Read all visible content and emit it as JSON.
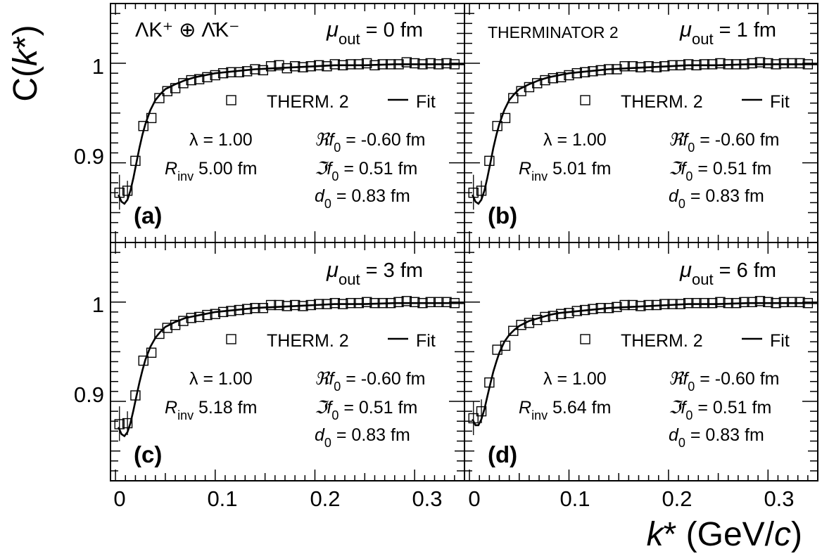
{
  "chart_data": {
    "type": "scatter",
    "xlabel": "k* (GeV/c)",
    "ylabel": "C(k*)",
    "x_ticks": [
      "0",
      "0.1",
      "0.2",
      "0.3"
    ],
    "y_ticks": [
      "0.9",
      "1"
    ],
    "xlim": [
      -0.005,
      0.35
    ],
    "ylim": [
      0.82,
      1.06
    ],
    "system_label": "ΛK⁺ ⊕ Λ̄K⁻",
    "generator_label": "THERMINATOR 2",
    "legend": {
      "data": "THERM. 2",
      "fit": "Fit"
    },
    "param_names": {
      "lambda": "λ =",
      "rinv": "R",
      "rinv_sub": "inv",
      "ref0": "ℜf",
      "imf0": "ℑf",
      "d0": "d",
      "zero_sub": "0"
    },
    "mu_name": "μ",
    "mu_sub": "out",
    "panels": [
      {
        "letter": "(a)",
        "mu_out": "= 0 fm",
        "lambda": "1.00",
        "rinv": "5.00 fm",
        "ref0": "= -0.60 fm",
        "imf0": "= 0.51 fm",
        "d0": "= 0.83 fm",
        "series": {
          "data_x": [
            0.004,
            0.012,
            0.02,
            0.028,
            0.036,
            0.044,
            0.052,
            0.06,
            0.068,
            0.076,
            0.084,
            0.092,
            0.1,
            0.108,
            0.116,
            0.124,
            0.132,
            0.14,
            0.148,
            0.156,
            0.164,
            0.172,
            0.18,
            0.188,
            0.196,
            0.204,
            0.212,
            0.22,
            0.228,
            0.236,
            0.244,
            0.252,
            0.26,
            0.268,
            0.276,
            0.284,
            0.292,
            0.3,
            0.308,
            0.316,
            0.324,
            0.332,
            0.34
          ],
          "data_y": [
            0.87,
            0.872,
            0.902,
            0.937,
            0.945,
            0.965,
            0.972,
            0.975,
            0.98,
            0.983,
            0.984,
            0.986,
            0.988,
            0.99,
            0.991,
            0.991,
            0.992,
            0.994,
            0.993,
            0.997,
            0.998,
            0.995,
            0.997,
            0.996,
            0.997,
            0.998,
            0.997,
            0.999,
            0.998,
            0.999,
            0.999,
            1.0,
            0.998,
            0.999,
            0.999,
            0.999,
            1.001,
            1.0,
            0.999,
            1.0,
            0.999,
            1.0,
            0.999
          ],
          "err_x": [
            0.004,
            0.012
          ],
          "err_lo": [
            0.853,
            0.862
          ],
          "err_hi": [
            0.888,
            0.882
          ],
          "fit_x": [
            0.003,
            0.006,
            0.009,
            0.012,
            0.015,
            0.018,
            0.021,
            0.024,
            0.027,
            0.03,
            0.035,
            0.04,
            0.045,
            0.05,
            0.06,
            0.07,
            0.08,
            0.09,
            0.1,
            0.12,
            0.14,
            0.16,
            0.18,
            0.2,
            0.22,
            0.25,
            0.28,
            0.31,
            0.34,
            0.35
          ],
          "fit_y": [
            0.868,
            0.861,
            0.859,
            0.863,
            0.872,
            0.885,
            0.9,
            0.915,
            0.928,
            0.939,
            0.953,
            0.963,
            0.969,
            0.974,
            0.979,
            0.983,
            0.986,
            0.988,
            0.99,
            0.992,
            0.994,
            0.995,
            0.996,
            0.997,
            0.998,
            0.998,
            0.999,
            0.999,
            0.999,
            0.999
          ]
        }
      },
      {
        "letter": "(b)",
        "mu_out": "= 1 fm",
        "lambda": "1.00",
        "rinv": "5.01 fm",
        "ref0": "= -0.60 fm",
        "imf0": "= 0.51 fm",
        "d0": "= 0.83 fm",
        "series": {
          "data_x": [
            0.004,
            0.012,
            0.02,
            0.028,
            0.036,
            0.044,
            0.052,
            0.06,
            0.068,
            0.076,
            0.084,
            0.092,
            0.1,
            0.108,
            0.116,
            0.124,
            0.132,
            0.14,
            0.148,
            0.156,
            0.164,
            0.172,
            0.18,
            0.188,
            0.196,
            0.204,
            0.212,
            0.22,
            0.228,
            0.236,
            0.244,
            0.252,
            0.26,
            0.268,
            0.276,
            0.284,
            0.292,
            0.3,
            0.308,
            0.316,
            0.324,
            0.332,
            0.34
          ],
          "data_y": [
            0.87,
            0.872,
            0.902,
            0.937,
            0.945,
            0.965,
            0.972,
            0.976,
            0.98,
            0.983,
            0.985,
            0.986,
            0.988,
            0.99,
            0.991,
            0.992,
            0.993,
            0.994,
            0.994,
            0.997,
            0.997,
            0.996,
            0.997,
            0.996,
            0.997,
            0.998,
            0.998,
            0.999,
            0.998,
            0.999,
            0.999,
            1.0,
            0.999,
            0.999,
            0.999,
            1.0,
            1.001,
            1.0,
            0.999,
            1.0,
            1.0,
            1.0,
            0.999
          ],
          "err_x": [
            0.004,
            0.012
          ],
          "err_lo": [
            0.853,
            0.862
          ],
          "err_hi": [
            0.888,
            0.882
          ],
          "fit_x": [
            0.003,
            0.006,
            0.009,
            0.012,
            0.015,
            0.018,
            0.021,
            0.024,
            0.027,
            0.03,
            0.035,
            0.04,
            0.045,
            0.05,
            0.06,
            0.07,
            0.08,
            0.09,
            0.1,
            0.12,
            0.14,
            0.16,
            0.18,
            0.2,
            0.22,
            0.25,
            0.28,
            0.31,
            0.34,
            0.35
          ],
          "fit_y": [
            0.868,
            0.861,
            0.859,
            0.863,
            0.872,
            0.885,
            0.9,
            0.915,
            0.928,
            0.939,
            0.953,
            0.963,
            0.969,
            0.974,
            0.979,
            0.983,
            0.986,
            0.988,
            0.99,
            0.992,
            0.994,
            0.995,
            0.996,
            0.997,
            0.998,
            0.998,
            0.999,
            0.999,
            0.999,
            0.999
          ]
        }
      },
      {
        "letter": "(c)",
        "mu_out": "= 3 fm",
        "lambda": "1.00",
        "rinv": "5.18 fm",
        "ref0": "= -0.60 fm",
        "imf0": "= 0.51 fm",
        "d0": "= 0.83 fm",
        "series": {
          "data_x": [
            0.004,
            0.012,
            0.02,
            0.028,
            0.036,
            0.044,
            0.052,
            0.06,
            0.068,
            0.076,
            0.084,
            0.092,
            0.1,
            0.108,
            0.116,
            0.124,
            0.132,
            0.14,
            0.148,
            0.156,
            0.164,
            0.172,
            0.18,
            0.188,
            0.196,
            0.204,
            0.212,
            0.22,
            0.228,
            0.236,
            0.244,
            0.252,
            0.26,
            0.268,
            0.276,
            0.284,
            0.292,
            0.3,
            0.308,
            0.316,
            0.324,
            0.332,
            0.34
          ],
          "data_y": [
            0.877,
            0.878,
            0.906,
            0.941,
            0.949,
            0.968,
            0.974,
            0.977,
            0.981,
            0.984,
            0.985,
            0.987,
            0.988,
            0.99,
            0.991,
            0.992,
            0.993,
            0.994,
            0.994,
            0.997,
            0.997,
            0.996,
            0.997,
            0.996,
            0.997,
            0.998,
            0.998,
            0.999,
            0.998,
            0.999,
            0.999,
            1.0,
            0.999,
            0.999,
            0.999,
            1.0,
            1.001,
            1.0,
            0.999,
            1.0,
            1.0,
            1.0,
            0.999
          ],
          "err_x": [
            0.004,
            0.012
          ],
          "err_lo": [
            0.86,
            0.866
          ],
          "err_hi": [
            0.895,
            0.89
          ],
          "fit_x": [
            0.003,
            0.006,
            0.009,
            0.012,
            0.015,
            0.018,
            0.021,
            0.024,
            0.027,
            0.03,
            0.035,
            0.04,
            0.045,
            0.05,
            0.06,
            0.07,
            0.08,
            0.09,
            0.1,
            0.12,
            0.14,
            0.16,
            0.18,
            0.2,
            0.22,
            0.25,
            0.28,
            0.31,
            0.34,
            0.35
          ],
          "fit_y": [
            0.874,
            0.867,
            0.865,
            0.869,
            0.878,
            0.891,
            0.905,
            0.919,
            0.931,
            0.942,
            0.955,
            0.964,
            0.97,
            0.975,
            0.98,
            0.984,
            0.986,
            0.988,
            0.99,
            0.992,
            0.994,
            0.995,
            0.996,
            0.997,
            0.998,
            0.998,
            0.999,
            0.999,
            0.999,
            0.999
          ]
        }
      },
      {
        "letter": "(d)",
        "mu_out": "= 6 fm",
        "lambda": "1.00",
        "rinv": "5.64 fm",
        "ref0": "= -0.60 fm",
        "imf0": "= 0.51 fm",
        "d0": "= 0.83 fm",
        "series": {
          "data_x": [
            0.004,
            0.012,
            0.02,
            0.028,
            0.036,
            0.044,
            0.052,
            0.06,
            0.068,
            0.076,
            0.084,
            0.092,
            0.1,
            0.108,
            0.116,
            0.124,
            0.132,
            0.14,
            0.148,
            0.156,
            0.164,
            0.172,
            0.18,
            0.188,
            0.196,
            0.204,
            0.212,
            0.22,
            0.228,
            0.236,
            0.244,
            0.252,
            0.26,
            0.268,
            0.276,
            0.284,
            0.292,
            0.3,
            0.308,
            0.316,
            0.324,
            0.332,
            0.34
          ],
          "data_y": [
            0.883,
            0.89,
            0.919,
            0.952,
            0.956,
            0.971,
            0.977,
            0.979,
            0.982,
            0.985,
            0.986,
            0.988,
            0.989,
            0.991,
            0.992,
            0.993,
            0.994,
            0.994,
            0.995,
            0.997,
            0.997,
            0.996,
            0.997,
            0.997,
            0.998,
            0.998,
            0.998,
            0.999,
            0.999,
            0.999,
            0.999,
            1.0,
            0.999,
            0.999,
            1.0,
            1.0,
            1.001,
            1.0,
            0.999,
            1.0,
            1.0,
            1.0,
            0.999
          ],
          "err_x": [
            0.004,
            0.012
          ],
          "err_lo": [
            0.866,
            0.878
          ],
          "err_hi": [
            0.9,
            0.902
          ],
          "fit_x": [
            0.003,
            0.006,
            0.009,
            0.012,
            0.015,
            0.018,
            0.021,
            0.024,
            0.027,
            0.03,
            0.035,
            0.04,
            0.045,
            0.05,
            0.06,
            0.07,
            0.08,
            0.09,
            0.1,
            0.12,
            0.14,
            0.16,
            0.18,
            0.2,
            0.22,
            0.25,
            0.28,
            0.31,
            0.34,
            0.35
          ],
          "fit_y": [
            0.882,
            0.876,
            0.876,
            0.882,
            0.892,
            0.905,
            0.918,
            0.93,
            0.94,
            0.949,
            0.96,
            0.967,
            0.972,
            0.976,
            0.981,
            0.984,
            0.987,
            0.989,
            0.99,
            0.992,
            0.994,
            0.995,
            0.996,
            0.997,
            0.998,
            0.998,
            0.999,
            0.999,
            0.999,
            0.999
          ]
        }
      }
    ]
  }
}
